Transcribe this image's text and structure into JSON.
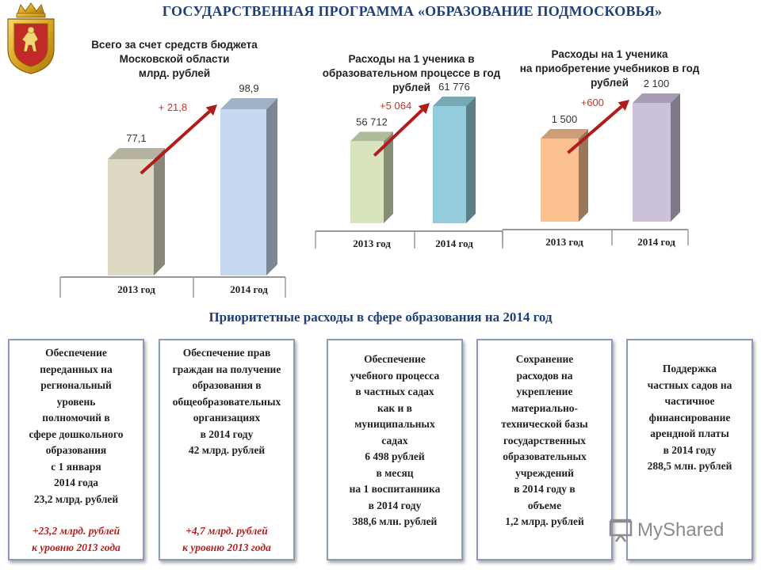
{
  "header": {
    "title": "ГОСУДАРСТВЕННАЯ ПРОГРАММА «ОБРАЗОВАНИЕ ПОДМОСКОВЬЯ»"
  },
  "chart_data": [
    {
      "type": "bar",
      "title": "Всего за счет средств бюджета\nМосковской области\nмлрд. рублей",
      "categories": [
        "2013 год",
        "2014 год"
      ],
      "values": [
        77.1,
        98.9
      ],
      "value_labels": [
        "77,1",
        "98,9"
      ],
      "increase_label": "+ 21,8",
      "colors": [
        "#ddd9c3",
        "#c6d9f1"
      ]
    },
    {
      "type": "bar",
      "title": "Расходы на 1 ученика в\nобразовательном процессе в год\nрублей",
      "categories": [
        "2013 год",
        "2014 год"
      ],
      "values": [
        56712,
        61776
      ],
      "value_labels": [
        "56 712",
        "61 776"
      ],
      "increase_label": "+5 064",
      "colors": [
        "#d7e4bd",
        "#93cddd"
      ]
    },
    {
      "type": "bar",
      "title": "Расходы на 1 ученика\nна приобретение учебников в год\nрублей",
      "categories": [
        "2013 год",
        "2014 год"
      ],
      "values": [
        1500,
        2100
      ],
      "value_labels": [
        "1 500",
        "2 100"
      ],
      "increase_label": "+600",
      "colors": [
        "#fac090",
        "#ccc1da"
      ]
    }
  ],
  "priorities": {
    "title": "Приоритетные расходы в сфере образования на 2014 год",
    "cards": [
      {
        "text": "Обеспечение\nпереданных на\nрегиональный\nуровень\nполномочий в\nсфере дошкольного\nобразования\nс 1 января\n2014 года\n23,2 млрд. рублей",
        "delta": "+23,2 млрд. рублей\nк уровню 2013 года"
      },
      {
        "text": "Обеспечение прав\nграждан на получение\nобразования в\nобщеобразовательных\nорганизациях\nв 2014 году\n42 млрд. рублей",
        "delta": "+4,7 млрд. рублей\nк уровню 2013 года"
      },
      {
        "text": "Обеспечение\nучебного процесса\nв частных садах\nкак и в\nмуниципальных\nсадах\n6 498 рублей\nв месяц\nна 1 воспитанника\nв 2014 году\n388,6 млн. рублей",
        "delta": ""
      },
      {
        "text": "Сохранение\nрасходов на\nукрепление\nматериально-\nтехнической базы\nгосударственных\nобразовательных\nучреждений\nв 2014 году в\nобъеме\n1,2 млрд. рублей",
        "delta": ""
      },
      {
        "text": "Поддержка\nчастных садов на\nчастичное\nфинансирование\nарендной платы\nв 2014 году\n288,5 млн. рублей",
        "delta": ""
      }
    ]
  },
  "watermark": {
    "text": "MyShared",
    "icon": "presentation-screen-icon"
  }
}
